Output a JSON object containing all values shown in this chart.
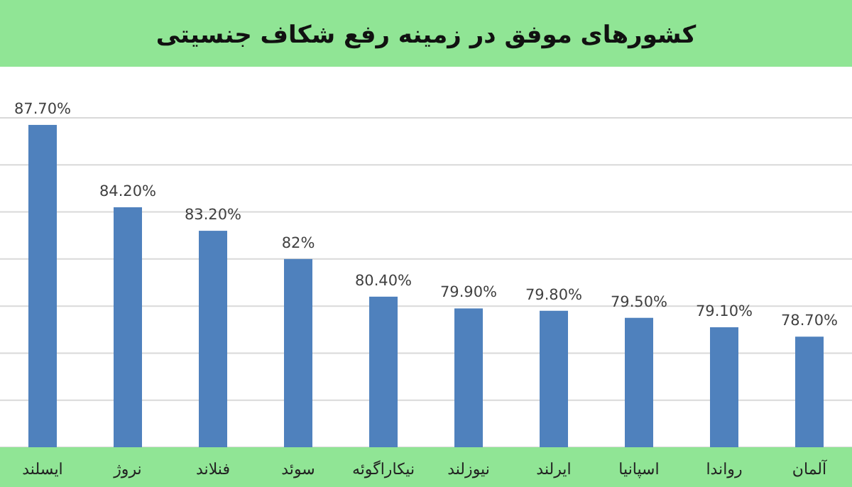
{
  "chart_data": {
    "type": "bar",
    "title": "کشورهای موفق در زمینه رفع شکاف جنسیتی",
    "categories": [
      "ایسلند",
      "نروژ",
      "فنلاند",
      "سوئد",
      "نیکاراگوئه",
      "نیوزلند",
      "ایرلند",
      "اسپانیا",
      "رواندا",
      "آلمان"
    ],
    "values": [
      87.7,
      84.2,
      83.2,
      82,
      80.4,
      79.9,
      79.8,
      79.5,
      79.1,
      78.7
    ],
    "value_labels": [
      "87.70%",
      "84.20%",
      "83.20%",
      "82%",
      "80.40%",
      "79.90%",
      "79.80%",
      "79.50%",
      "79.10%",
      "78.70%"
    ],
    "color": "#4f81bd",
    "ylim": [
      74,
      88
    ],
    "yticks": [
      {
        "value": 74,
        "label": null
      },
      {
        "value": 76,
        "label": null
      },
      {
        "value": 78,
        "label": null
      },
      {
        "value": 80,
        "label": null
      },
      {
        "value": 82,
        "label": null
      },
      {
        "value": 84,
        "label": null
      },
      {
        "value": 86,
        "label": null
      },
      {
        "value": 88,
        "label": null
      }
    ],
    "grid": "y"
  }
}
